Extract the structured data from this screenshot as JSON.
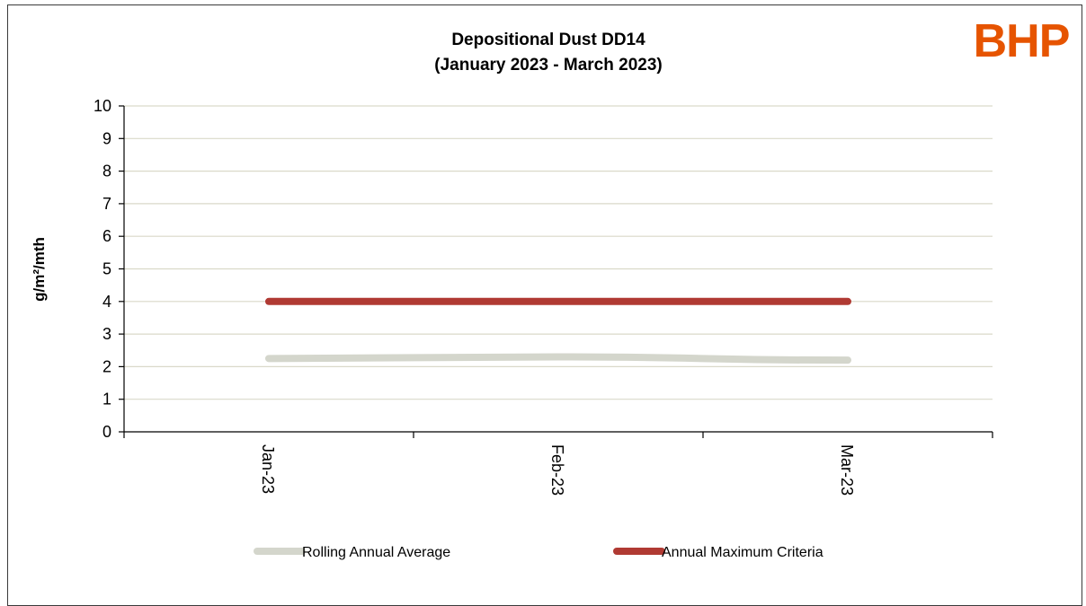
{
  "logo": {
    "text": "BHP",
    "color": "#e65400"
  },
  "chart_data": {
    "type": "line",
    "title": "Depositional Dust DD14",
    "subtitle": "(January 2023 - March 2023)",
    "ylabel": "g/m²/mth",
    "xlabel": "",
    "categories": [
      "Jan-23",
      "Feb-23",
      "Mar-23"
    ],
    "ylim": [
      0,
      10
    ],
    "yticks": [
      0,
      1,
      2,
      3,
      4,
      5,
      6,
      7,
      8,
      9,
      10
    ],
    "grid": true,
    "legend_position": "bottom",
    "series": [
      {
        "name": "Rolling Annual Average",
        "color": "#d4d6cc",
        "values": [
          2.25,
          2.3,
          2.2
        ]
      },
      {
        "name": "Annual Maximum Criteria",
        "color": "#b03a33",
        "values": [
          4,
          4,
          4
        ]
      }
    ]
  }
}
